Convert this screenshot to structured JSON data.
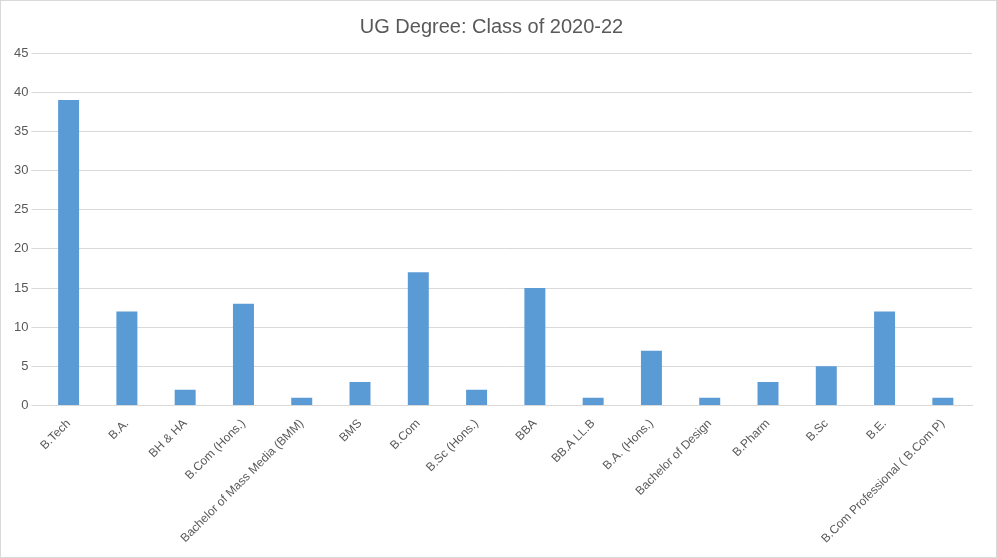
{
  "chart_data": {
    "type": "bar",
    "title": "UG Degree: Class of 2020-22",
    "categories": [
      "B.Tech",
      "B.A.",
      "BH & HA",
      "B.Com (Hons.)",
      "Bachelor of Mass Media (BMM)",
      "BMS",
      "B.Com",
      "B.Sc (Hons.)",
      "BBA",
      "BB.A LL.B",
      "B.A. (Hons.)",
      "Bachelor of Design",
      "B.Pharm",
      "B.Sc",
      "B.E.",
      "B.Com Professional ( B.Com P)"
    ],
    "values": [
      39,
      12,
      2,
      13,
      1,
      3,
      17,
      2,
      15,
      1,
      7,
      1,
      3,
      5,
      12,
      1
    ],
    "color": "#5b9bd5",
    "ylim": [
      0,
      45
    ],
    "yticks": [
      0,
      5,
      10,
      15,
      20,
      25,
      30,
      35,
      40,
      45
    ],
    "grid": true
  }
}
